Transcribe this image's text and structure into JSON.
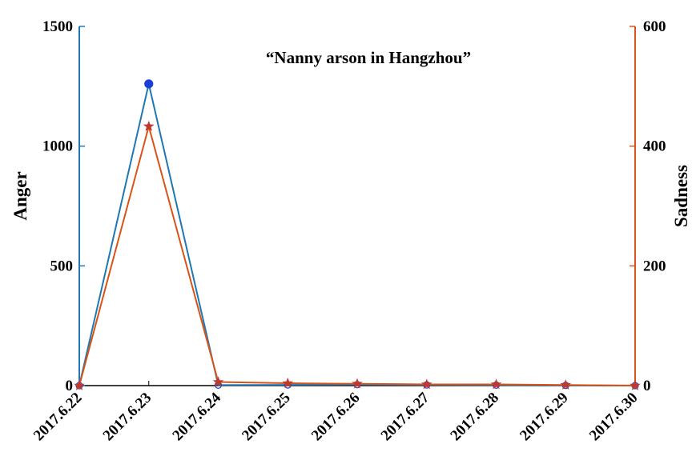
{
  "chart_data": {
    "type": "line",
    "title": "“Nanny arson in Hangzhou”",
    "x_categories": [
      "2017.6.22",
      "2017.6.23",
      "2017.6.24",
      "2017.6.25",
      "2017.6.26",
      "2017.6.27",
      "2017.6.28",
      "2017.6.29",
      "2017.6.30"
    ],
    "left_axis": {
      "label": "Anger",
      "range": [
        0,
        1500
      ],
      "ticks": [
        0,
        500,
        1000,
        1500
      ]
    },
    "right_axis": {
      "label": "Sadness",
      "range": [
        0,
        600
      ],
      "ticks": [
        0,
        200,
        400,
        600
      ]
    },
    "series": [
      {
        "name": "Anger",
        "axis": "left",
        "marker": "circle",
        "color": "#1f77b4",
        "marker_color": "#1a3fd6",
        "values": [
          0,
          1260,
          2,
          3,
          4,
          3,
          2,
          1,
          0
        ]
      },
      {
        "name": "Sadness",
        "axis": "right",
        "marker": "star",
        "color": "#d95319",
        "marker_color": "#c0392b",
        "values": [
          0,
          433,
          6,
          4,
          3,
          2,
          2,
          1,
          0
        ]
      }
    ],
    "grid": false,
    "legend": "none"
  }
}
